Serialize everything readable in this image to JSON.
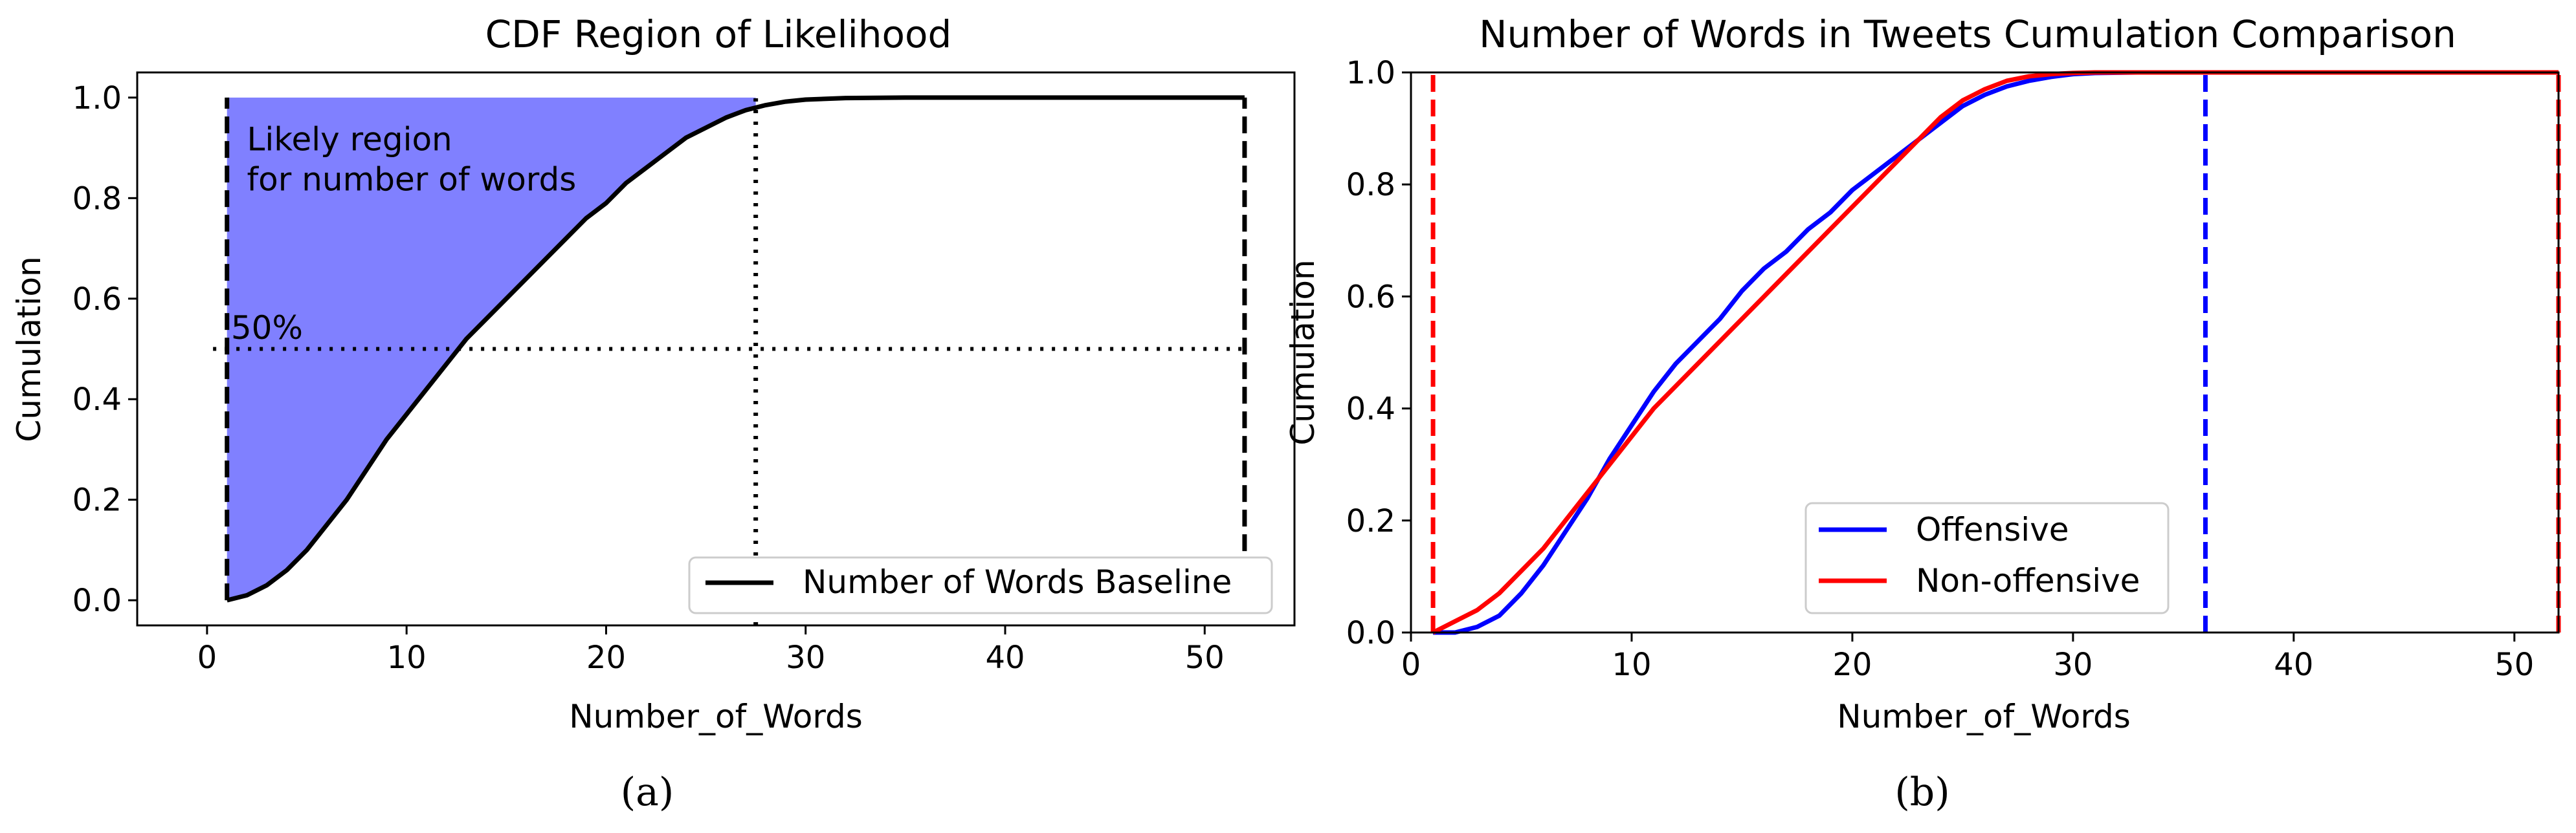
{
  "chart_data": [
    {
      "type": "area",
      "panel": "a",
      "title": "CDF Region of Likelihood",
      "xlabel": "Number_of_Words",
      "ylabel": "Cumulation",
      "xlim": [
        -3.5,
        54.5
      ],
      "ylim": [
        -0.05,
        1.05
      ],
      "xticks": [
        0,
        10,
        20,
        30,
        40,
        50
      ],
      "xtick_labels": [
        "0",
        "10",
        "20",
        "30",
        "40",
        "50"
      ],
      "yticks": [
        0.0,
        0.2,
        0.4,
        0.6,
        0.8,
        1.0
      ],
      "ytick_labels": [
        "0.0",
        "0.2",
        "0.4",
        "0.6",
        "0.8",
        "1.0"
      ],
      "series": [
        {
          "name": "Number of Words Baseline",
          "color": "#000000",
          "x": [
            1,
            2,
            3,
            4,
            5,
            6,
            7,
            8,
            9,
            10,
            11,
            12,
            13,
            14,
            15,
            16,
            17,
            18,
            19,
            20,
            21,
            22,
            23,
            24,
            25,
            26,
            27,
            28,
            29,
            30,
            32,
            35,
            40,
            45,
            52
          ],
          "y": [
            0.0,
            0.01,
            0.03,
            0.06,
            0.1,
            0.15,
            0.2,
            0.26,
            0.32,
            0.37,
            0.42,
            0.47,
            0.52,
            0.56,
            0.6,
            0.64,
            0.68,
            0.72,
            0.76,
            0.79,
            0.83,
            0.86,
            0.89,
            0.92,
            0.94,
            0.96,
            0.975,
            0.985,
            0.992,
            0.996,
            0.999,
            1.0,
            1.0,
            1.0,
            1.0
          ]
        }
      ],
      "shaded_region": {
        "x_start": 1,
        "x_end": 27.5,
        "color": "#8080ff"
      },
      "vertical_lines": [
        {
          "x": 1,
          "style": "dashed",
          "color": "#000000"
        },
        {
          "x": 52,
          "style": "dashed",
          "color": "#000000"
        },
        {
          "x": 27.5,
          "style": "dotted",
          "color": "#000000"
        }
      ],
      "horizontal_lines": [
        {
          "y": 0.5,
          "x_start": 0.3,
          "x_end": 52,
          "style": "dotted",
          "color": "#000000"
        }
      ],
      "annotations": [
        {
          "text": "Likely region",
          "x": 2,
          "y": 0.895
        },
        {
          "text": "for number of words",
          "x": 2,
          "y": 0.815
        },
        {
          "text": "50%",
          "x": 1.2,
          "y": 0.52
        }
      ],
      "legend_position": "lower-right",
      "caption": "(a)"
    },
    {
      "type": "line",
      "panel": "b",
      "title": "Number of Words in Tweets Cumulation Comparison",
      "xlabel": "Number_of_Words",
      "ylabel": "Cumulation",
      "xlim": [
        0,
        52
      ],
      "ylim": [
        0.0,
        1.0
      ],
      "xticks": [
        0,
        10,
        20,
        30,
        40,
        50
      ],
      "xtick_labels": [
        "0",
        "10",
        "20",
        "30",
        "40",
        "50"
      ],
      "yticks": [
        0.0,
        0.2,
        0.4,
        0.6,
        0.8,
        1.0
      ],
      "ytick_labels": [
        "0.0",
        "0.2",
        "0.4",
        "0.6",
        "0.8",
        "1.0"
      ],
      "series": [
        {
          "name": "Offensive",
          "color": "#0000ff",
          "x": [
            1,
            2,
            3,
            4,
            5,
            6,
            7,
            8,
            9,
            10,
            11,
            12,
            13,
            14,
            15,
            16,
            17,
            18,
            19,
            20,
            21,
            22,
            23,
            24,
            25,
            26,
            27,
            28,
            29,
            30,
            31,
            33,
            36,
            40,
            52
          ],
          "y": [
            0.0,
            0.0,
            0.01,
            0.03,
            0.07,
            0.12,
            0.18,
            0.24,
            0.31,
            0.37,
            0.43,
            0.48,
            0.52,
            0.56,
            0.61,
            0.65,
            0.68,
            0.72,
            0.75,
            0.79,
            0.82,
            0.85,
            0.88,
            0.91,
            0.94,
            0.96,
            0.975,
            0.985,
            0.992,
            0.997,
            0.999,
            1.0,
            1.0,
            1.0,
            1.0
          ]
        },
        {
          "name": "Non-offensive",
          "color": "#ff0000",
          "x": [
            1,
            2,
            3,
            4,
            5,
            6,
            7,
            8,
            9,
            10,
            11,
            12,
            13,
            14,
            15,
            16,
            17,
            18,
            19,
            20,
            21,
            22,
            23,
            24,
            25,
            26,
            27,
            28,
            29,
            30,
            31,
            33,
            36,
            40,
            52
          ],
          "y": [
            0.0,
            0.02,
            0.04,
            0.07,
            0.11,
            0.15,
            0.2,
            0.25,
            0.3,
            0.35,
            0.4,
            0.44,
            0.48,
            0.52,
            0.56,
            0.6,
            0.64,
            0.68,
            0.72,
            0.76,
            0.8,
            0.84,
            0.88,
            0.92,
            0.95,
            0.97,
            0.985,
            0.993,
            0.997,
            0.999,
            1.0,
            1.0,
            1.0,
            1.0,
            1.0
          ]
        }
      ],
      "vertical_lines": [
        {
          "x": 1,
          "style": "dashed",
          "color": "#ff0000"
        },
        {
          "x": 36,
          "style": "dashed",
          "color": "#0000ff"
        },
        {
          "x": 52,
          "style": "dashed",
          "color": "#ff0000"
        }
      ],
      "legend_position": "lower-center",
      "caption": "(b)"
    }
  ]
}
